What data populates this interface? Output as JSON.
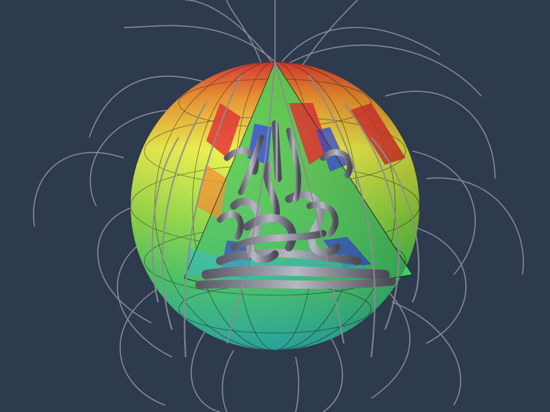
{
  "scene": {
    "background": "#2e3a4e",
    "subject": "dynamo-simulation-sphere",
    "colors": {
      "red": "#e3261e",
      "orange": "#f28a1a",
      "yellow": "#eef03a",
      "green": "#5ed648",
      "cyan": "#2ec9c2",
      "blue": "#2a3fd8",
      "field-line": "#9a9a9e",
      "tube": "#70707a"
    }
  }
}
